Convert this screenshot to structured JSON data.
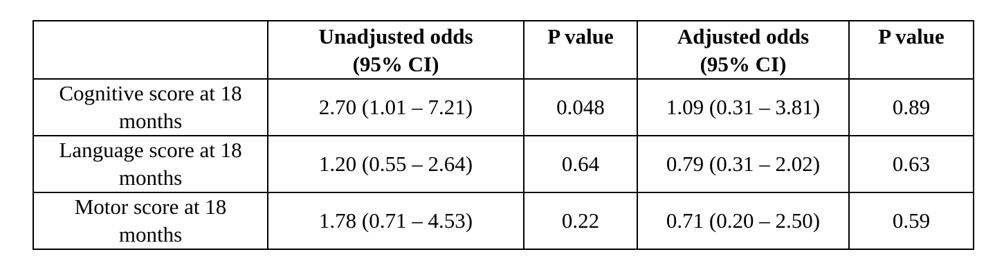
{
  "table": {
    "headers": [
      {
        "line1": "",
        "line2": ""
      },
      {
        "line1": "Unadjusted odds",
        "line2": "(95% CI)"
      },
      {
        "line1": "P value",
        "line2": ""
      },
      {
        "line1": "Adjusted odds",
        "line2": "(95% CI)"
      },
      {
        "line1": "P value",
        "line2": ""
      }
    ],
    "rows": [
      {
        "label_line1": "Cognitive score at 18",
        "label_line2": "months",
        "unadjusted_odds": "2.70 (1.01 – 7.21)",
        "unadjusted_p": "0.048",
        "adjusted_odds": "1.09 (0.31 – 3.81)",
        "adjusted_p": "0.89"
      },
      {
        "label_line1": "Language score at 18",
        "label_line2": "months",
        "unadjusted_odds": "1.20 (0.55 – 2.64)",
        "unadjusted_p": "0.64",
        "adjusted_odds": "0.79 (0.31 – 2.02)",
        "adjusted_p": "0.63"
      },
      {
        "label_line1": "Motor score at 18",
        "label_line2": "months",
        "unadjusted_odds": "1.78 (0.71 – 4.53)",
        "unadjusted_p": "0.22",
        "adjusted_odds": "0.71 (0.20 – 2.50)",
        "adjusted_p": "0.59"
      }
    ]
  }
}
